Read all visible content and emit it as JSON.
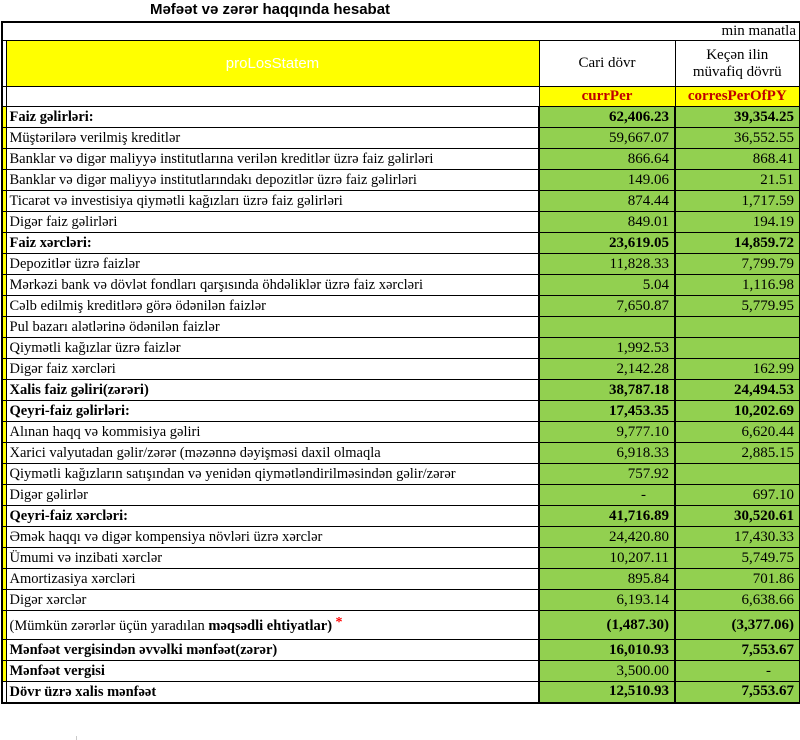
{
  "title": "Məfəət və zərər haqqında hesabat",
  "unit_note": "min manatla",
  "header": {
    "statement_code": "proLosStatem",
    "current_period_label": "Cari dövr",
    "previous_period_label_line1": "Keçən ilin",
    "previous_period_label_line2": "müvafiq dövrü",
    "current_period_code": "currPer",
    "previous_period_code": "corresPerOfPY"
  },
  "colors": {
    "cell_green": "#92D050",
    "cell_yellow": "#FFFF00",
    "code_text": "#C00000",
    "footnote_red": "#FF0000"
  },
  "rows": [
    {
      "label": "Faiz gəlirləri:",
      "current": "62,406.23",
      "previous": "39,354.25",
      "label_bold": true,
      "value_bold": true
    },
    {
      "label": "Müştərilərə verilmiş kreditlər",
      "current": "59,667.07",
      "previous": "36,552.55"
    },
    {
      "label": "Banklar və digər maliyyə institutlarına verilən kreditlər üzrə faiz gəlirləri",
      "current": "866.64",
      "previous": "868.41"
    },
    {
      "label": "Banklar və digər maliyyə institutlarındakı depozitlər üzrə faiz gəlirləri",
      "current": "149.06",
      "previous": "21.51"
    },
    {
      "label": "Ticarət və investisiya qiymətli kağızları üzrə faiz gəlirləri",
      "current": "874.44",
      "previous": "1,717.59"
    },
    {
      "label": "Digər faiz gəlirləri",
      "current": "849.01",
      "previous": "194.19"
    },
    {
      "label": "Faiz xərcləri:",
      "current": "23,619.05",
      "previous": "14,859.72",
      "label_bold": true,
      "value_bold": true
    },
    {
      "label": "Depozitlər üzrə faizlər",
      "current": "11,828.33",
      "previous": "7,799.79"
    },
    {
      "label": "Mərkəzi bank və dövlət fondları qarşısında öhdəliklər üzrə faiz xərcləri",
      "current": "5.04",
      "previous": "1,116.98"
    },
    {
      "label": "Cəlb edilmiş kreditlərə görə ödənilən faizlər",
      "current": "7,650.87",
      "previous": "5,779.95"
    },
    {
      "label": "Pul bazarı alətlərinə ödənilən faizlər",
      "current": "",
      "previous": ""
    },
    {
      "label": "Qiymətli kağızlar üzrə faizlər",
      "current": "1,992.53",
      "previous": ""
    },
    {
      "label": "Digər faiz xərcləri",
      "current": "2,142.28",
      "previous": "162.99"
    },
    {
      "label": "Xalis faiz gəliri(zərəri)",
      "current": "38,787.18",
      "previous": "24,494.53",
      "label_bold": true,
      "value_bold": true
    },
    {
      "label": "Qeyri-faiz gəlirləri:",
      "current": "17,453.35",
      "previous": "10,202.69",
      "label_bold": true,
      "value_bold": true
    },
    {
      "label": "Alınan haqq və kommisiya gəliri",
      "current": "9,777.10",
      "previous": "6,620.44"
    },
    {
      "label": "Xarici valyutadan gəlir/zərər (məzənnə dəyişməsi daxil olmaqla",
      "current": "6,918.33",
      "previous": "2,885.15"
    },
    {
      "label": "Qiymətli kağızların satışından və yenidən qiymətləndirilməsindən gəlir/zərər",
      "current": "757.92",
      "previous": ""
    },
    {
      "label": "Digər gəlirlər",
      "current": "-",
      "previous": "697.10"
    },
    {
      "label": "Qeyri-faiz xərcləri:",
      "current": "41,716.89",
      "previous": "30,520.61",
      "label_bold": true,
      "value_bold": true
    },
    {
      "label": "Əmək haqqı və digər kompensiya növləri üzrə xərclər",
      "current": "24,420.80",
      "previous": "17,430.33"
    },
    {
      "label": "Ümumi və inzibati xərclər",
      "current": "10,207.11",
      "previous": "5,749.75"
    },
    {
      "label": "Amortizasiya xərcləri",
      "current": "895.84",
      "previous": "701.86"
    },
    {
      "label": "Digər xərclər",
      "current": "6,193.14",
      "previous": "6,638.66"
    },
    {
      "label_prefix": "(Mümkün zərərlər üçün yaradılan ",
      "label_emphasis": "məqsədli ehtiyatlar)",
      "label_mark": "*",
      "current": "(1,487.30)",
      "previous": "(3,377.06)",
      "value_bold": true,
      "tall": true
    },
    {
      "label": "Mənfəət vergisindən əvvəlki mənfəət(zərər)",
      "current": "16,010.93",
      "previous": "7,553.67",
      "label_bold": true,
      "value_bold": true
    },
    {
      "label": "Mənfəət vergisi",
      "current": "3,500.00",
      "previous": "-",
      "label_bold": true
    },
    {
      "label": "Dövr üzrə xalis mənfəət",
      "current": "12,510.93",
      "previous": "7,553.67",
      "label_bold": true,
      "value_bold": true,
      "strip": false
    }
  ]
}
